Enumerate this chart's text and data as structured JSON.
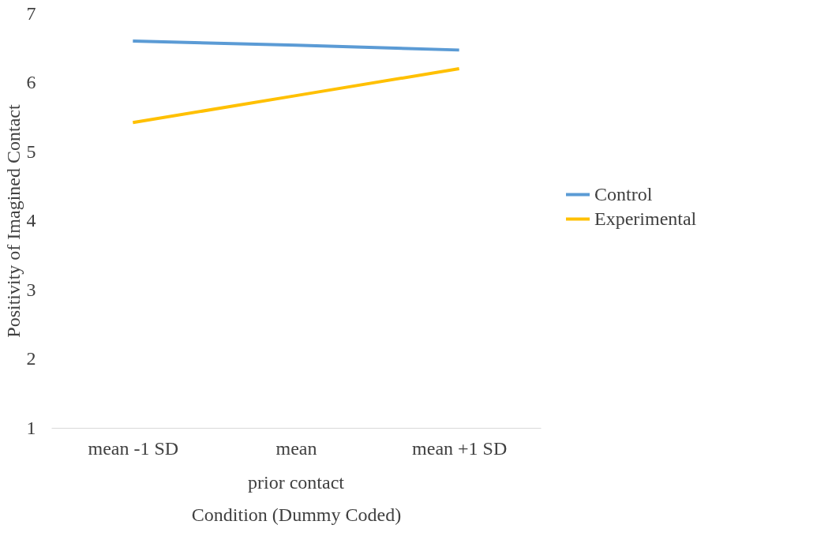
{
  "chart_data": {
    "type": "line",
    "ylabel": "Positivity of Imagined Contact",
    "xlabel": "Condition (Dummy Coded)",
    "annotations": [
      "prior contact"
    ],
    "categories": [
      "mean -1 SD",
      "mean",
      "mean +1 SD"
    ],
    "series": [
      {
        "name": "Control",
        "color": "#5b9bd5",
        "values": [
          6.6,
          6.54,
          6.47
        ]
      },
      {
        "name": "Experimental",
        "color": "#ffc000",
        "values": [
          5.42,
          5.81,
          6.2
        ]
      }
    ],
    "ylim": [
      1,
      7
    ],
    "yticks": [
      1,
      2,
      3,
      4,
      5,
      6,
      7
    ],
    "grid": false,
    "legend": "right",
    "marker": "none",
    "line_style": "solid"
  }
}
